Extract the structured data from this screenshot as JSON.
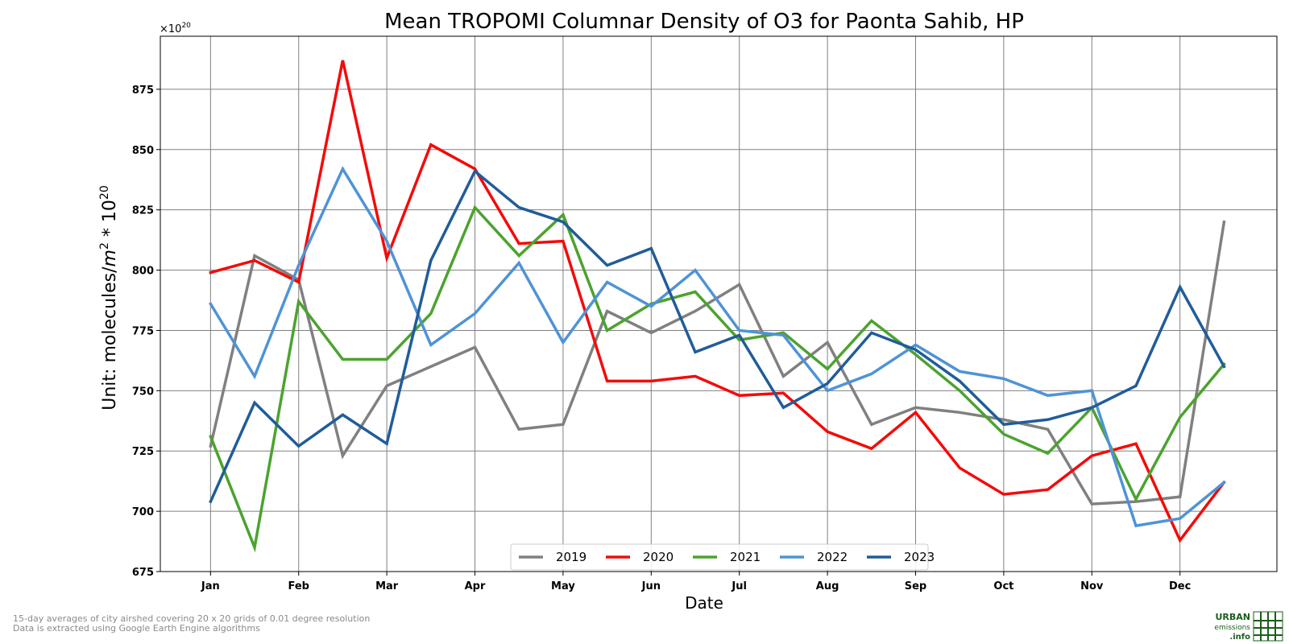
{
  "chart_data": {
    "type": "line",
    "title": "Mean TROPOMI Columnar Density of O3 for Paonta Sahib, HP",
    "xlabel": "Date",
    "ylabel_prefix": "Unit: molecules/",
    "ylabel_unit": "m",
    "ylabel_exp1": "2",
    "ylabel_mid": " * 10",
    "ylabel_exp2": "20",
    "offset_base": "×10",
    "offset_exp": "20",
    "ylim": [
      675,
      897
    ],
    "xlim": [
      0.43,
      13.1
    ],
    "yticks": [
      675,
      700,
      725,
      750,
      775,
      800,
      825,
      850,
      875
    ],
    "ytick_labels": [
      "675",
      "700",
      "725",
      "750",
      "775",
      "800",
      "825",
      "850",
      "875"
    ],
    "xtick_positions": [
      1,
      2,
      3,
      4,
      5,
      6,
      7,
      8,
      9,
      10,
      11,
      12
    ],
    "xtick_labels": [
      "Jan",
      "Feb",
      "Mar",
      "Apr",
      "May",
      "Jun",
      "Jul",
      "Aug",
      "Sep",
      "Oct",
      "Nov",
      "Dec"
    ],
    "x": [
      1,
      1.5,
      2,
      2.5,
      3,
      3.5,
      4,
      4.5,
      5,
      5.5,
      6,
      6.5,
      7,
      7.5,
      8,
      8.5,
      9,
      9.5,
      10,
      10.5,
      11,
      11.5,
      12,
      12.5
    ],
    "grid": true,
    "legend_position": "bottom-center",
    "series": [
      {
        "name": "2019",
        "color": "#808080",
        "values": [
          727,
          806,
          796,
          723,
          752,
          760,
          768,
          734,
          736,
          783,
          774,
          783,
          794,
          756,
          770,
          736,
          743,
          741,
          738,
          734,
          703,
          704,
          706,
          820
        ]
      },
      {
        "name": "2020",
        "color": "#f50a0a",
        "values": [
          799,
          804,
          795,
          887,
          805,
          852,
          842,
          811,
          812,
          754,
          754,
          756,
          748,
          749,
          733,
          726,
          741,
          718,
          707,
          709,
          723,
          728,
          688,
          712
        ]
      },
      {
        "name": "2021",
        "color": "#4ba32e",
        "values": [
          731,
          685,
          787,
          763,
          763,
          782,
          826,
          806,
          823,
          775,
          786,
          791,
          771,
          774,
          759,
          779,
          765,
          750,
          732,
          724,
          743,
          705,
          739,
          761
        ]
      },
      {
        "name": "2022",
        "color": "#4f93d6",
        "values": [
          786,
          756,
          802,
          842,
          812,
          769,
          782,
          803,
          770,
          795,
          785,
          800,
          775,
          773,
          750,
          757,
          769,
          758,
          755,
          748,
          750,
          694,
          697,
          712
        ]
      },
      {
        "name": "2023",
        "color": "#215c99",
        "values": [
          704,
          745,
          727,
          740,
          728,
          804,
          841,
          826,
          820,
          802,
          809,
          766,
          773,
          743,
          753,
          774,
          767,
          754,
          736,
          738,
          743,
          752,
          793,
          760
        ]
      }
    ]
  },
  "footnote": {
    "line1": "15-day averages of city airshed covering 20 x 20 grids of 0.01 degree resolution",
    "line2": "Data is extracted using Google Earth Engine algorithms"
  },
  "logo": {
    "line1": "URBAN",
    "line2": "emissions",
    "line3": ".info",
    "color": "#1a5e1a"
  }
}
